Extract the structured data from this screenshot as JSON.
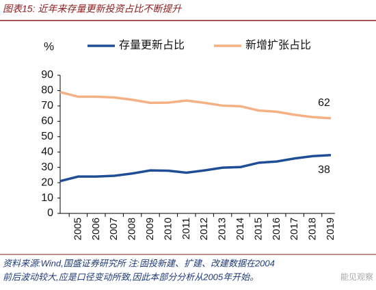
{
  "chart_data": {
    "type": "line",
    "title": "图表15:  近年来存量更新投资占比不断提升",
    "y_label": "%",
    "categories": [
      null,
      "2005",
      "2006",
      "2007",
      "2008",
      "2009",
      "2010",
      "2011",
      "2012",
      "2013",
      "2014",
      "2015",
      "2016",
      "2017",
      "2018",
      "2019"
    ],
    "series": [
      {
        "name": "存量更新占比",
        "color": "#1f4e96",
        "values": [
          21,
          24,
          24,
          24.5,
          26,
          28,
          27.8,
          26.5,
          28,
          29.8,
          30.2,
          33,
          33.8,
          35.8,
          37.3,
          38
        ]
      },
      {
        "name": "新增扩张占比",
        "color": "#f4b183",
        "values": [
          79,
          76,
          76,
          75.5,
          74,
          72,
          72.2,
          73.5,
          72,
          70.2,
          69.8,
          67,
          66.2,
          64.2,
          62.7,
          62
        ]
      }
    ],
    "annotations": [
      "62",
      "38"
    ],
    "ylim": [
      0,
      90
    ],
    "yticks": [
      0,
      10,
      20,
      30,
      40,
      50,
      60,
      70,
      80,
      90
    ],
    "grid": false,
    "source": [
      "资料来源:Wind,国盛证券研究所 注:固投新建、扩建、改建数据在2004",
      "前后波动较大,应是口径变动所致,因此本部分分析从2005年开始。"
    ],
    "watermark": "能见观察"
  }
}
